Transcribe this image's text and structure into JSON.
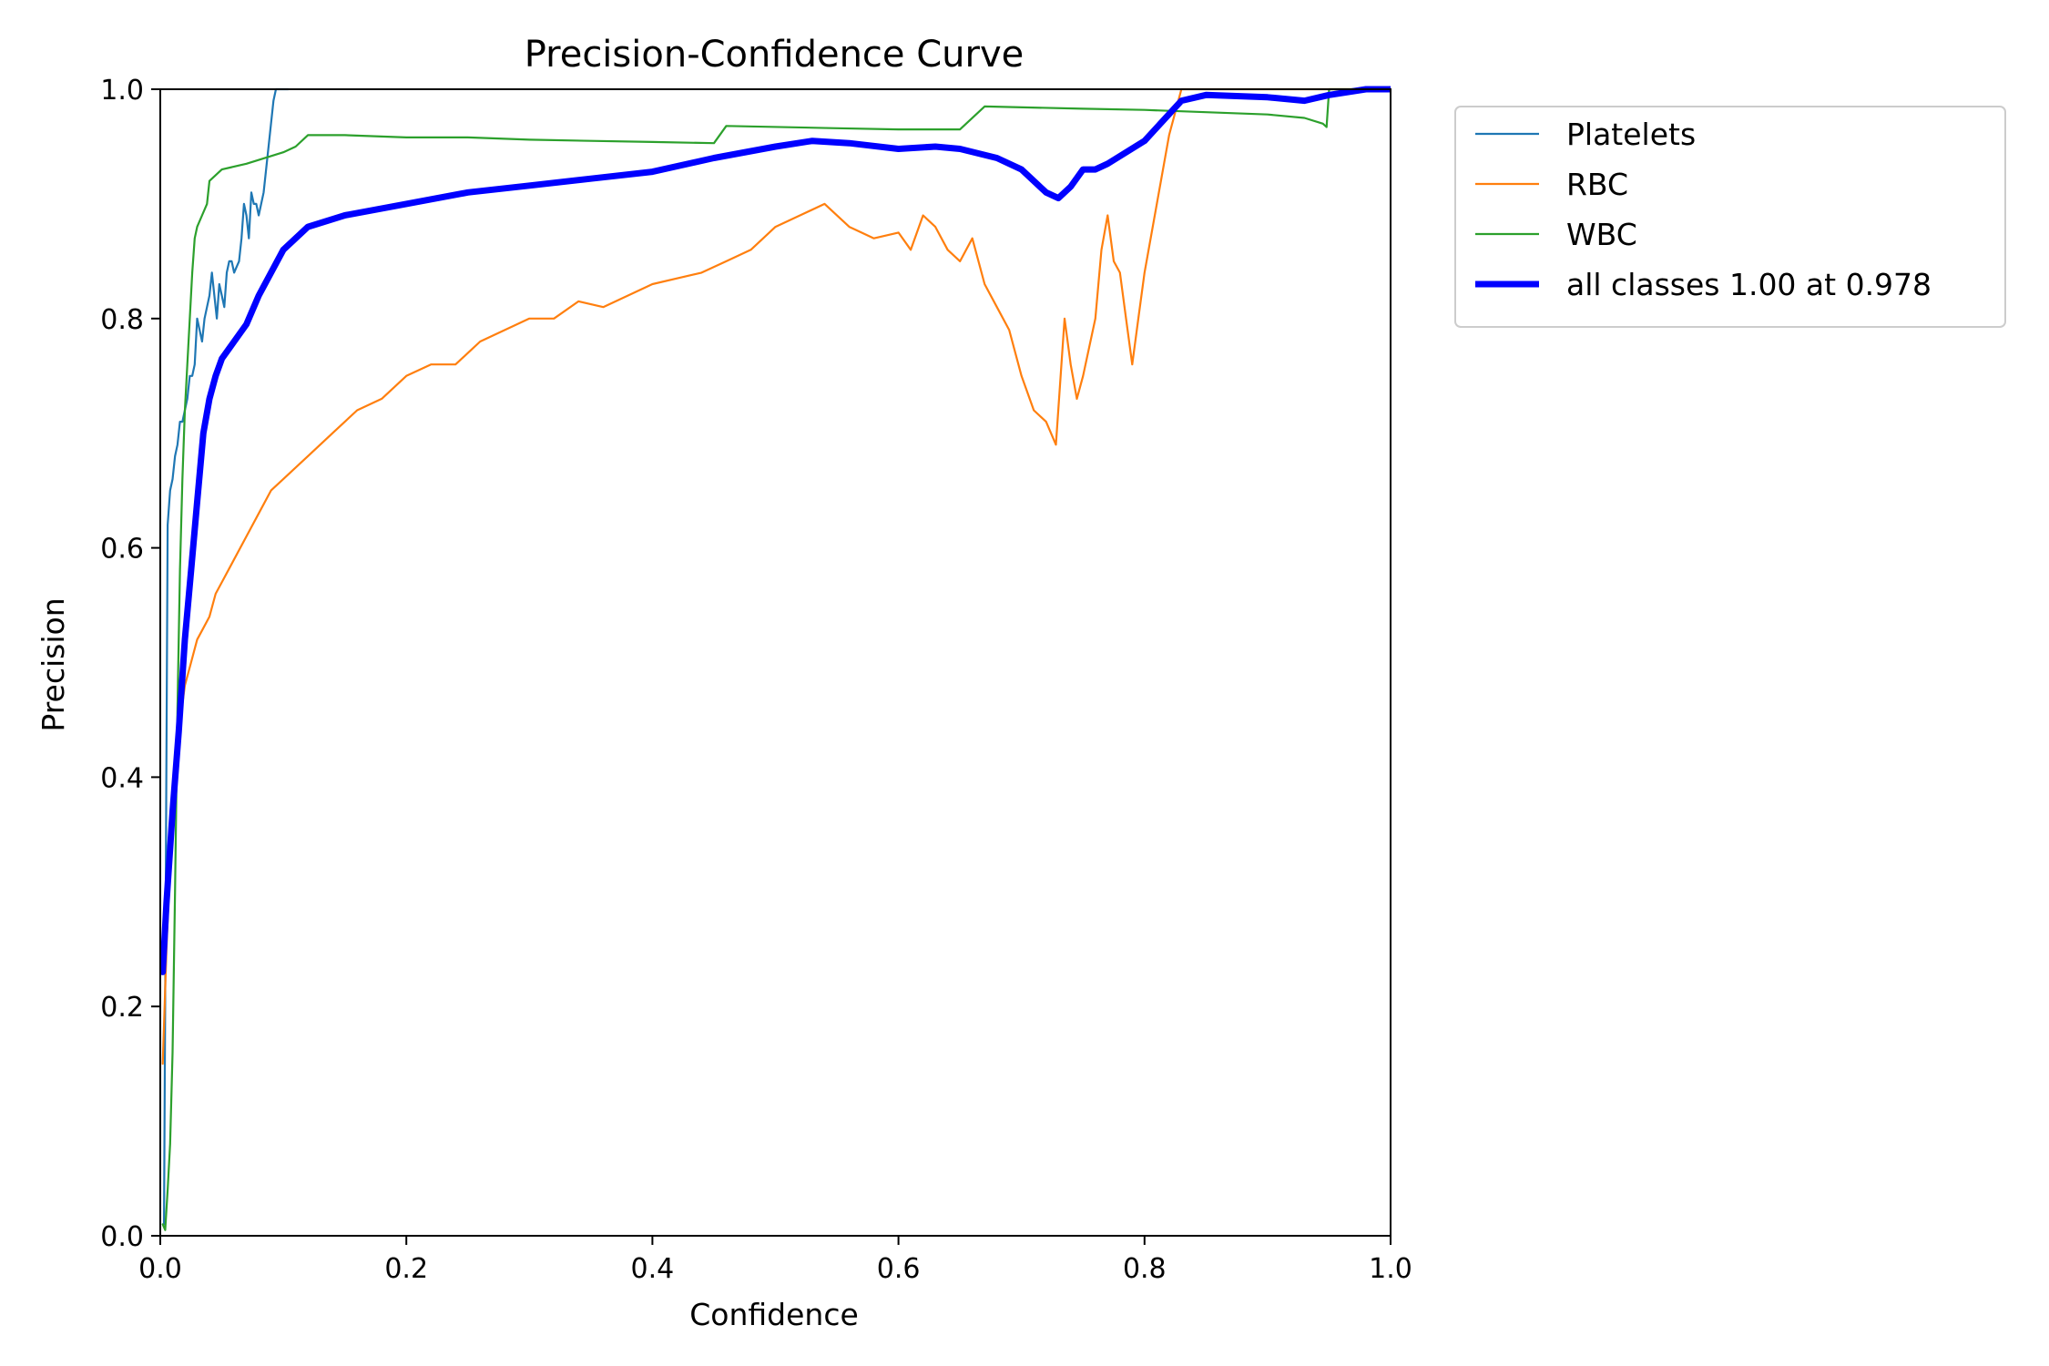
{
  "chart_data": {
    "type": "line",
    "title": "Precision-Confidence Curve",
    "xlabel": "Confidence",
    "ylabel": "Precision",
    "xlim": [
      0,
      1
    ],
    "ylim": [
      0,
      1
    ],
    "xticks": [
      0.0,
      0.2,
      0.4,
      0.6,
      0.8,
      1.0
    ],
    "yticks": [
      0.0,
      0.2,
      0.4,
      0.6,
      0.8,
      1.0
    ],
    "xtick_labels": [
      "0.0",
      "0.2",
      "0.4",
      "0.6",
      "0.8",
      "1.0"
    ],
    "ytick_labels": [
      "0.0",
      "0.2",
      "0.4",
      "0.6",
      "0.8",
      "1.0"
    ],
    "grid": false,
    "legend_position": "outside-top-right",
    "series": [
      {
        "name": "Platelets",
        "color": "#1f77b4",
        "width": "thin",
        "x": [
          0.003,
          0.006,
          0.008,
          0.01,
          0.012,
          0.014,
          0.016,
          0.018,
          0.02,
          0.022,
          0.024,
          0.026,
          0.028,
          0.03,
          0.032,
          0.034,
          0.036,
          0.038,
          0.04,
          0.042,
          0.044,
          0.046,
          0.048,
          0.05,
          0.052,
          0.054,
          0.056,
          0.058,
          0.06,
          0.062,
          0.064,
          0.066,
          0.068,
          0.07,
          0.072,
          0.074,
          0.076,
          0.078,
          0.08,
          0.082,
          0.084,
          0.086,
          0.088,
          0.09,
          0.092,
          0.094,
          0.096,
          0.098,
          0.1,
          0.102,
          0.104
        ],
        "y": [
          0.01,
          0.62,
          0.65,
          0.66,
          0.68,
          0.69,
          0.71,
          0.71,
          0.72,
          0.73,
          0.75,
          0.75,
          0.76,
          0.8,
          0.79,
          0.78,
          0.8,
          0.81,
          0.82,
          0.84,
          0.82,
          0.8,
          0.83,
          0.82,
          0.81,
          0.84,
          0.85,
          0.85,
          0.84,
          0.845,
          0.85,
          0.87,
          0.9,
          0.89,
          0.87,
          0.91,
          0.9,
          0.9,
          0.89,
          0.9,
          0.91,
          0.93,
          0.95,
          0.97,
          0.99,
          1.0,
          1.0,
          1.0,
          1.0,
          1.0,
          1.0
        ]
      },
      {
        "name": "RBC",
        "color": "#ff7f0e",
        "width": "thin",
        "x": [
          0.002,
          0.005,
          0.01,
          0.015,
          0.02,
          0.025,
          0.03,
          0.035,
          0.04,
          0.045,
          0.05,
          0.06,
          0.07,
          0.08,
          0.09,
          0.1,
          0.12,
          0.14,
          0.16,
          0.18,
          0.2,
          0.22,
          0.24,
          0.26,
          0.28,
          0.3,
          0.32,
          0.34,
          0.36,
          0.38,
          0.4,
          0.42,
          0.44,
          0.46,
          0.48,
          0.5,
          0.52,
          0.54,
          0.56,
          0.58,
          0.6,
          0.61,
          0.62,
          0.63,
          0.64,
          0.65,
          0.66,
          0.67,
          0.68,
          0.69,
          0.7,
          0.71,
          0.72,
          0.728,
          0.735,
          0.74,
          0.745,
          0.75,
          0.76,
          0.765,
          0.77,
          0.775,
          0.78,
          0.785,
          0.79,
          0.795,
          0.8,
          0.81,
          0.82,
          0.83,
          0.84,
          0.86,
          0.9,
          0.95,
          1.0
        ],
        "y": [
          0.15,
          0.25,
          0.38,
          0.44,
          0.48,
          0.5,
          0.52,
          0.53,
          0.54,
          0.56,
          0.57,
          0.59,
          0.61,
          0.63,
          0.65,
          0.66,
          0.68,
          0.7,
          0.72,
          0.73,
          0.75,
          0.76,
          0.76,
          0.78,
          0.79,
          0.8,
          0.8,
          0.815,
          0.81,
          0.82,
          0.83,
          0.835,
          0.84,
          0.85,
          0.86,
          0.88,
          0.89,
          0.9,
          0.88,
          0.87,
          0.875,
          0.86,
          0.89,
          0.88,
          0.86,
          0.85,
          0.87,
          0.83,
          0.81,
          0.79,
          0.75,
          0.72,
          0.71,
          0.69,
          0.8,
          0.76,
          0.73,
          0.75,
          0.8,
          0.86,
          0.89,
          0.85,
          0.84,
          0.8,
          0.76,
          0.8,
          0.84,
          0.9,
          0.96,
          1.0,
          1.0,
          1.0,
          1.0,
          1.0,
          1.0
        ]
      },
      {
        "name": "WBC",
        "color": "#2ca02c",
        "width": "thin",
        "x": [
          0.002,
          0.004,
          0.006,
          0.008,
          0.01,
          0.012,
          0.014,
          0.016,
          0.018,
          0.02,
          0.022,
          0.024,
          0.026,
          0.028,
          0.03,
          0.034,
          0.038,
          0.04,
          0.05,
          0.07,
          0.1,
          0.11,
          0.12,
          0.15,
          0.2,
          0.25,
          0.3,
          0.35,
          0.4,
          0.45,
          0.46,
          0.55,
          0.6,
          0.65,
          0.67,
          0.75,
          0.8,
          0.85,
          0.9,
          0.93,
          0.945,
          0.948,
          0.95,
          0.97,
          1.0
        ],
        "y": [
          0.01,
          0.005,
          0.04,
          0.08,
          0.16,
          0.3,
          0.46,
          0.58,
          0.66,
          0.72,
          0.76,
          0.8,
          0.84,
          0.87,
          0.88,
          0.89,
          0.9,
          0.92,
          0.93,
          0.935,
          0.945,
          0.95,
          0.96,
          0.96,
          0.958,
          0.958,
          0.956,
          0.955,
          0.954,
          0.953,
          0.968,
          0.966,
          0.965,
          0.965,
          0.985,
          0.983,
          0.982,
          0.98,
          0.978,
          0.975,
          0.97,
          0.967,
          1.0,
          1.0,
          1.0
        ]
      },
      {
        "name": "all classes 1.00 at 0.978",
        "color": "#0000ff",
        "width": "thick",
        "x": [
          0.002,
          0.005,
          0.01,
          0.015,
          0.02,
          0.025,
          0.03,
          0.035,
          0.04,
          0.045,
          0.05,
          0.06,
          0.07,
          0.08,
          0.1,
          0.12,
          0.15,
          0.2,
          0.25,
          0.3,
          0.35,
          0.4,
          0.45,
          0.5,
          0.53,
          0.56,
          0.6,
          0.63,
          0.65,
          0.68,
          0.7,
          0.72,
          0.73,
          0.74,
          0.75,
          0.76,
          0.77,
          0.8,
          0.83,
          0.85,
          0.9,
          0.93,
          0.95,
          0.98,
          1.0
        ],
        "y": [
          0.23,
          0.29,
          0.37,
          0.44,
          0.52,
          0.58,
          0.64,
          0.7,
          0.73,
          0.75,
          0.765,
          0.78,
          0.795,
          0.82,
          0.86,
          0.88,
          0.89,
          0.9,
          0.91,
          0.916,
          0.922,
          0.928,
          0.94,
          0.95,
          0.955,
          0.953,
          0.948,
          0.95,
          0.948,
          0.94,
          0.93,
          0.91,
          0.905,
          0.915,
          0.93,
          0.93,
          0.935,
          0.955,
          0.99,
          0.995,
          0.993,
          0.99,
          0.995,
          1.0,
          1.0
        ]
      }
    ]
  }
}
